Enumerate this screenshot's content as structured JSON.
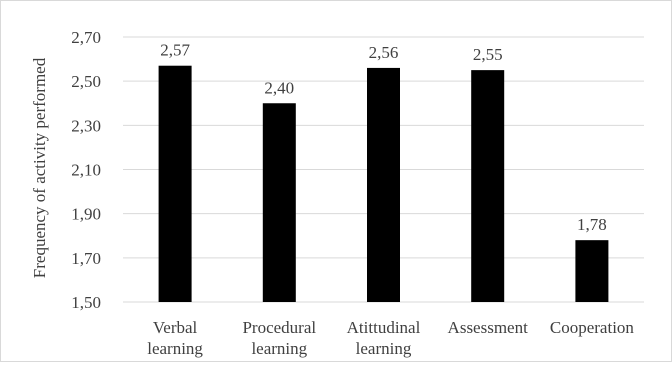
{
  "chart_data": {
    "type": "bar",
    "title": "",
    "xlabel": "",
    "ylabel": "Frequency of activity performed",
    "categories": [
      [
        "Verbal",
        "learning"
      ],
      [
        "Procedural",
        "learning"
      ],
      [
        "Atittudinal",
        "learning"
      ],
      [
        "Assessment"
      ],
      [
        "Cooperation"
      ]
    ],
    "values": [
      2.57,
      2.4,
      2.56,
      2.55,
      1.78
    ],
    "value_labels": [
      "2,57",
      "2,40",
      "2,56",
      "2,55",
      "1,78"
    ],
    "ylim": [
      1.5,
      2.7
    ],
    "yticks": [
      1.5,
      1.7,
      1.9,
      2.1,
      2.3,
      2.5,
      2.7
    ],
    "ytick_labels": [
      "1,50",
      "1,70",
      "1,90",
      "2,10",
      "2,30",
      "2,50",
      "2,70"
    ],
    "grid": true,
    "legend": "none",
    "bar_color": "#000000",
    "grid_color": "#d9d9d9"
  }
}
